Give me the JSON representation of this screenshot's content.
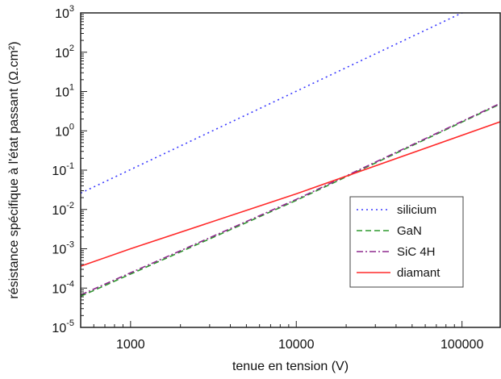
{
  "chart_data": {
    "type": "line",
    "xlabel": "tenue en tension (V)",
    "ylabel": "résistance spécifique à l'état passant (Ω.cm²)",
    "x_scale": "log",
    "y_scale": "log",
    "xlim": [
      500,
      170000
    ],
    "ylim": [
      1e-05,
      1000
    ],
    "x_ticks": [
      1000,
      10000,
      100000
    ],
    "x_tick_labels": [
      "1000",
      "10000",
      "100000"
    ],
    "y_ticks": [
      1e-05,
      0.0001,
      0.001,
      0.01,
      0.1,
      1,
      10,
      100,
      1000
    ],
    "y_tick_labels": [
      {
        "base": "10",
        "exp": "-5"
      },
      {
        "base": "10",
        "exp": "-4"
      },
      {
        "base": "10",
        "exp": "-3"
      },
      {
        "base": "10",
        "exp": "-2"
      },
      {
        "base": "10",
        "exp": "-1"
      },
      {
        "base": "10",
        "exp": "0"
      },
      {
        "base": "10",
        "exp": "1"
      },
      {
        "base": "10",
        "exp": "2"
      },
      {
        "base": "10",
        "exp": "3"
      }
    ],
    "legend_position": "center-right",
    "grid": false,
    "series": [
      {
        "name": "silicium",
        "color": "#3a3aff",
        "dash": "dotted",
        "x": [
          500,
          100000,
          170000
        ],
        "y": [
          0.026,
          1000,
          3500
        ]
      },
      {
        "name": "GaN",
        "color": "#2e9a2e",
        "dash": "dashed",
        "x": [
          500,
          10000,
          170000
        ],
        "y": [
          6.2e-05,
          0.017,
          4.8
        ]
      },
      {
        "name": "SiC 4H",
        "color": "#8e2a8e",
        "dash": "dashdot",
        "x": [
          500,
          10000,
          170000
        ],
        "y": [
          6.7e-05,
          0.018,
          5.0
        ]
      },
      {
        "name": "diamant",
        "color": "#ff2a2a",
        "dash": "solid",
        "x": [
          500,
          1000,
          10000,
          170000
        ],
        "y": [
          0.00036,
          0.001,
          0.025,
          1.7
        ]
      }
    ]
  }
}
